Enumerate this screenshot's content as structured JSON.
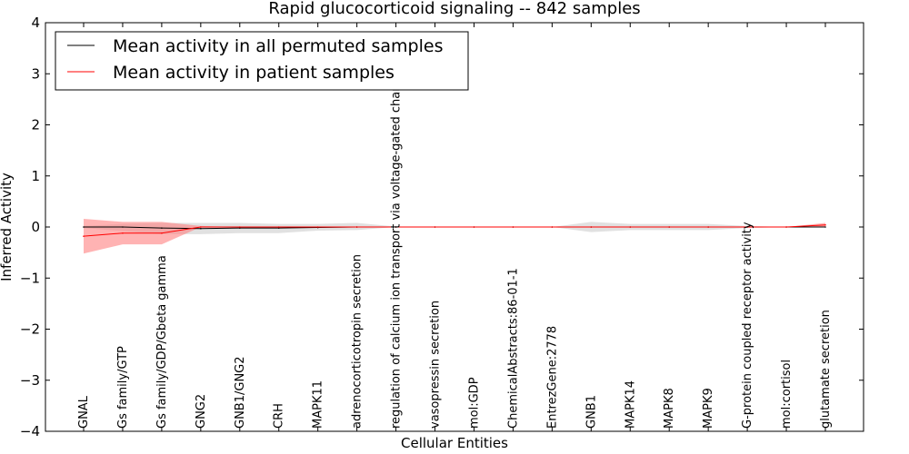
{
  "chart_data": {
    "type": "line",
    "title": "Rapid glucocorticoid signaling -- 842 samples",
    "xlabel": "Cellular Entities",
    "ylabel": "Inferred Activity",
    "ylim": [
      -4,
      4
    ],
    "yticks": [
      -4,
      -3,
      -2,
      -1,
      0,
      1,
      2,
      3,
      4
    ],
    "ytick_labels": [
      "−4",
      "−3",
      "−2",
      "−1",
      "0",
      "1",
      "2",
      "3",
      "4"
    ],
    "categories": [
      "GNAL",
      "Gs family/GTP",
      "Gs family/GDP/Gbeta gamma",
      "GNG2",
      "GNB1/GNG2",
      "CRH",
      "MAPK11",
      "adrenocorticotropin secretion",
      "regulation of calcium ion transport via voltage-gated channel",
      "vasopressin secretion",
      "mol:GDP",
      "ChemicalAbstracts:86-01-1",
      "EntrezGene:2778",
      "GNB1",
      "MAPK14",
      "MAPK8",
      "MAPK9",
      "G-protein coupled receptor activity",
      "mol:cortisol",
      "glutamate secretion"
    ],
    "legend": {
      "position": "top-left"
    },
    "series": [
      {
        "name": "Mean activity in all permuted samples",
        "color": "#000000",
        "band_color": "#c8c8c8",
        "values": [
          0.0,
          0.0,
          -0.02,
          -0.03,
          -0.02,
          -0.02,
          -0.01,
          0.0,
          0.0,
          0.0,
          0.0,
          0.0,
          0.0,
          0.0,
          0.0,
          0.0,
          0.0,
          0.0,
          0.0,
          0.0
        ],
        "lower": [
          -0.02,
          -0.08,
          -0.14,
          -0.14,
          -0.12,
          -0.12,
          -0.07,
          -0.06,
          0.0,
          0.0,
          0.0,
          0.0,
          0.0,
          -0.1,
          -0.06,
          -0.06,
          -0.06,
          -0.02,
          0.0,
          0.0
        ],
        "upper": [
          0.02,
          0.06,
          0.08,
          0.08,
          0.08,
          0.06,
          0.06,
          0.08,
          0.01,
          0.0,
          0.0,
          0.0,
          0.0,
          0.1,
          0.06,
          0.06,
          0.06,
          0.02,
          0.0,
          0.01
        ]
      },
      {
        "name": "Mean activity in patient samples",
        "color": "#ff0000",
        "band_color": "#ff8080",
        "values": [
          -0.18,
          -0.12,
          -0.12,
          0.0,
          0.0,
          0.0,
          0.0,
          0.0,
          0.0,
          0.0,
          0.0,
          0.0,
          0.0,
          0.0,
          0.0,
          0.0,
          0.0,
          0.0,
          0.0,
          0.04
        ],
        "lower": [
          -0.52,
          -0.34,
          -0.34,
          0.0,
          0.0,
          0.0,
          0.0,
          0.0,
          0.0,
          0.0,
          0.0,
          0.0,
          0.0,
          0.0,
          0.0,
          0.0,
          0.0,
          0.0,
          0.0,
          0.0
        ],
        "upper": [
          0.16,
          0.1,
          0.1,
          0.02,
          0.0,
          0.0,
          0.0,
          0.0,
          0.0,
          0.0,
          0.0,
          0.0,
          0.0,
          0.0,
          0.0,
          0.0,
          0.0,
          0.0,
          0.0,
          0.08
        ]
      }
    ]
  }
}
